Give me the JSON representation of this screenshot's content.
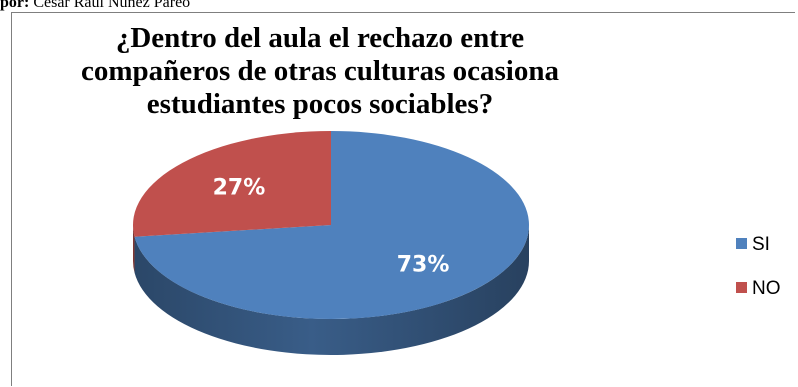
{
  "caption": {
    "prefix": "por:",
    "text": " Cesar Raul Nuñez Pareo"
  },
  "chart_data": {
    "type": "pie",
    "title": "¿Dentro del aula el  rechazo entre\ncompañeros de otras culturas ocasiona\nestudiantes pocos sociables?",
    "categories": [
      "SI",
      "NO"
    ],
    "values": [
      73,
      27
    ],
    "data_labels": [
      "73%",
      "27%"
    ],
    "colors": [
      "#4f81bd",
      "#c0504d"
    ],
    "legend_position": "right",
    "style": "3d"
  }
}
